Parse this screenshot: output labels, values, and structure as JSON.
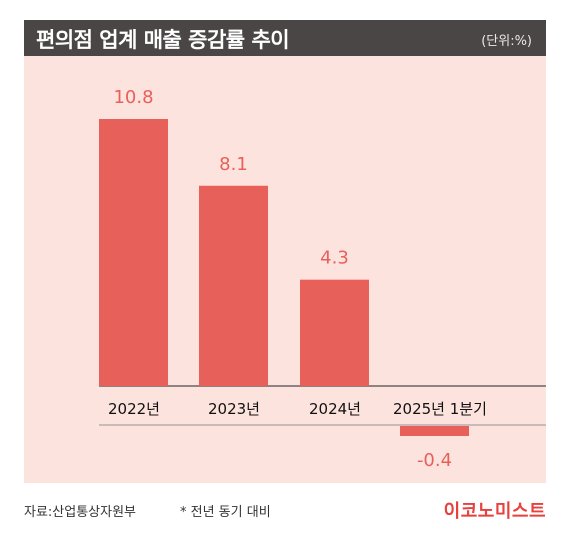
{
  "header": {
    "title": "편의점 업계 매출 증감률 추이",
    "unit": "(단위:%)"
  },
  "chart_data": {
    "type": "bar",
    "categories": [
      "2022년",
      "2023년",
      "2024년",
      "2025년 1분기"
    ],
    "values": [
      10.8,
      8.1,
      4.3,
      -0.4
    ],
    "value_labels": [
      "10.8",
      "8.1",
      "4.3",
      "-0.4"
    ],
    "title": "편의점 업계 매출 증감률 추이",
    "ylabel": "",
    "xlabel": "",
    "grid": false,
    "bar_color": "#e8605a",
    "label_color": "#e8605a"
  },
  "footer": {
    "source": "자료:산업통상자원부",
    "note": "* 전년 동기 대비",
    "logo": "이코노미스트"
  },
  "colors": {
    "header_bg": "#4a4646",
    "plot_bg": "#fde3de",
    "logo": "#e8403c"
  }
}
